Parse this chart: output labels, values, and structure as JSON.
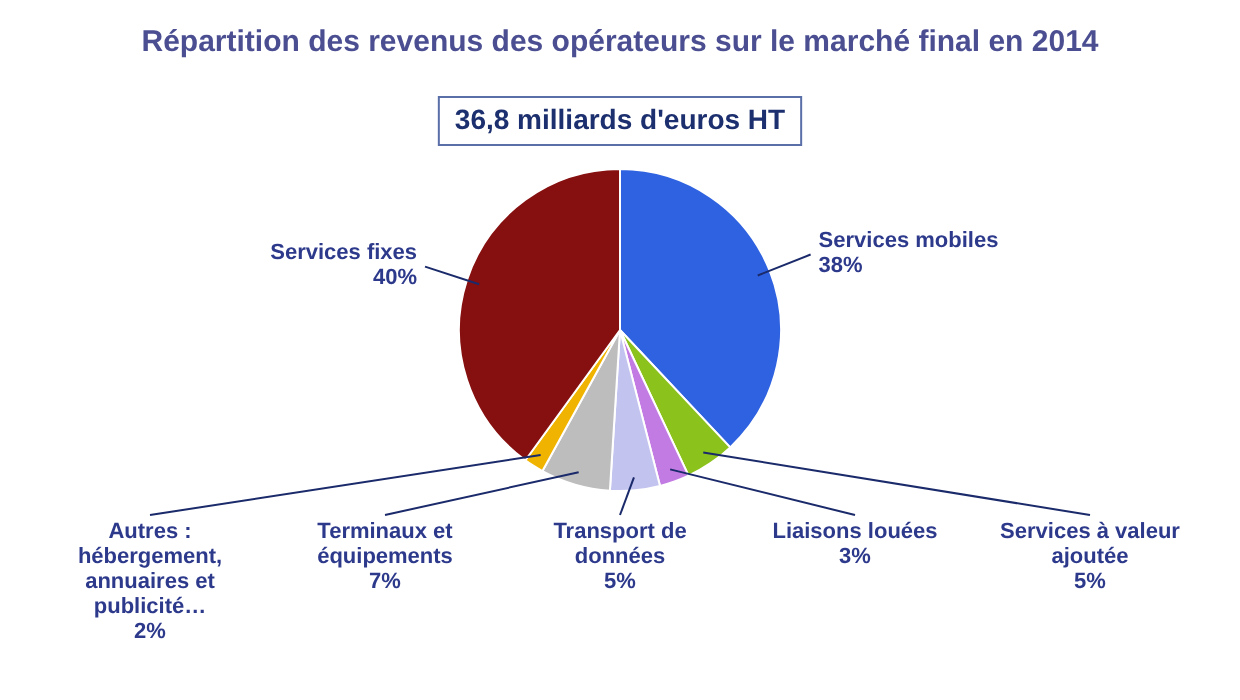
{
  "chart_data": {
    "type": "pie",
    "title": "Répartition des revenus des opérateurs sur le marché final en 2014",
    "categories": [
      "Services mobiles",
      "Services à valeur ajoutée",
      "Liaisons louées",
      "Transport de données",
      "Terminaux et équipements",
      "Autres : hébergement, annuaires et publicité…",
      "Services fixes"
    ],
    "values": [
      38,
      5,
      3,
      5,
      7,
      2,
      40
    ],
    "value_labels": [
      "38%",
      "5%",
      "3%",
      "5%",
      "7%",
      "2%",
      "40%"
    ],
    "colors": [
      "#2f62e0",
      "#8cc21c",
      "#c27be2",
      "#c3c3ef",
      "#bdbdbd",
      "#f0b400",
      "#860f0f"
    ],
    "annotations": [
      "36,8 milliards d'euros HT"
    ],
    "legend": false
  }
}
